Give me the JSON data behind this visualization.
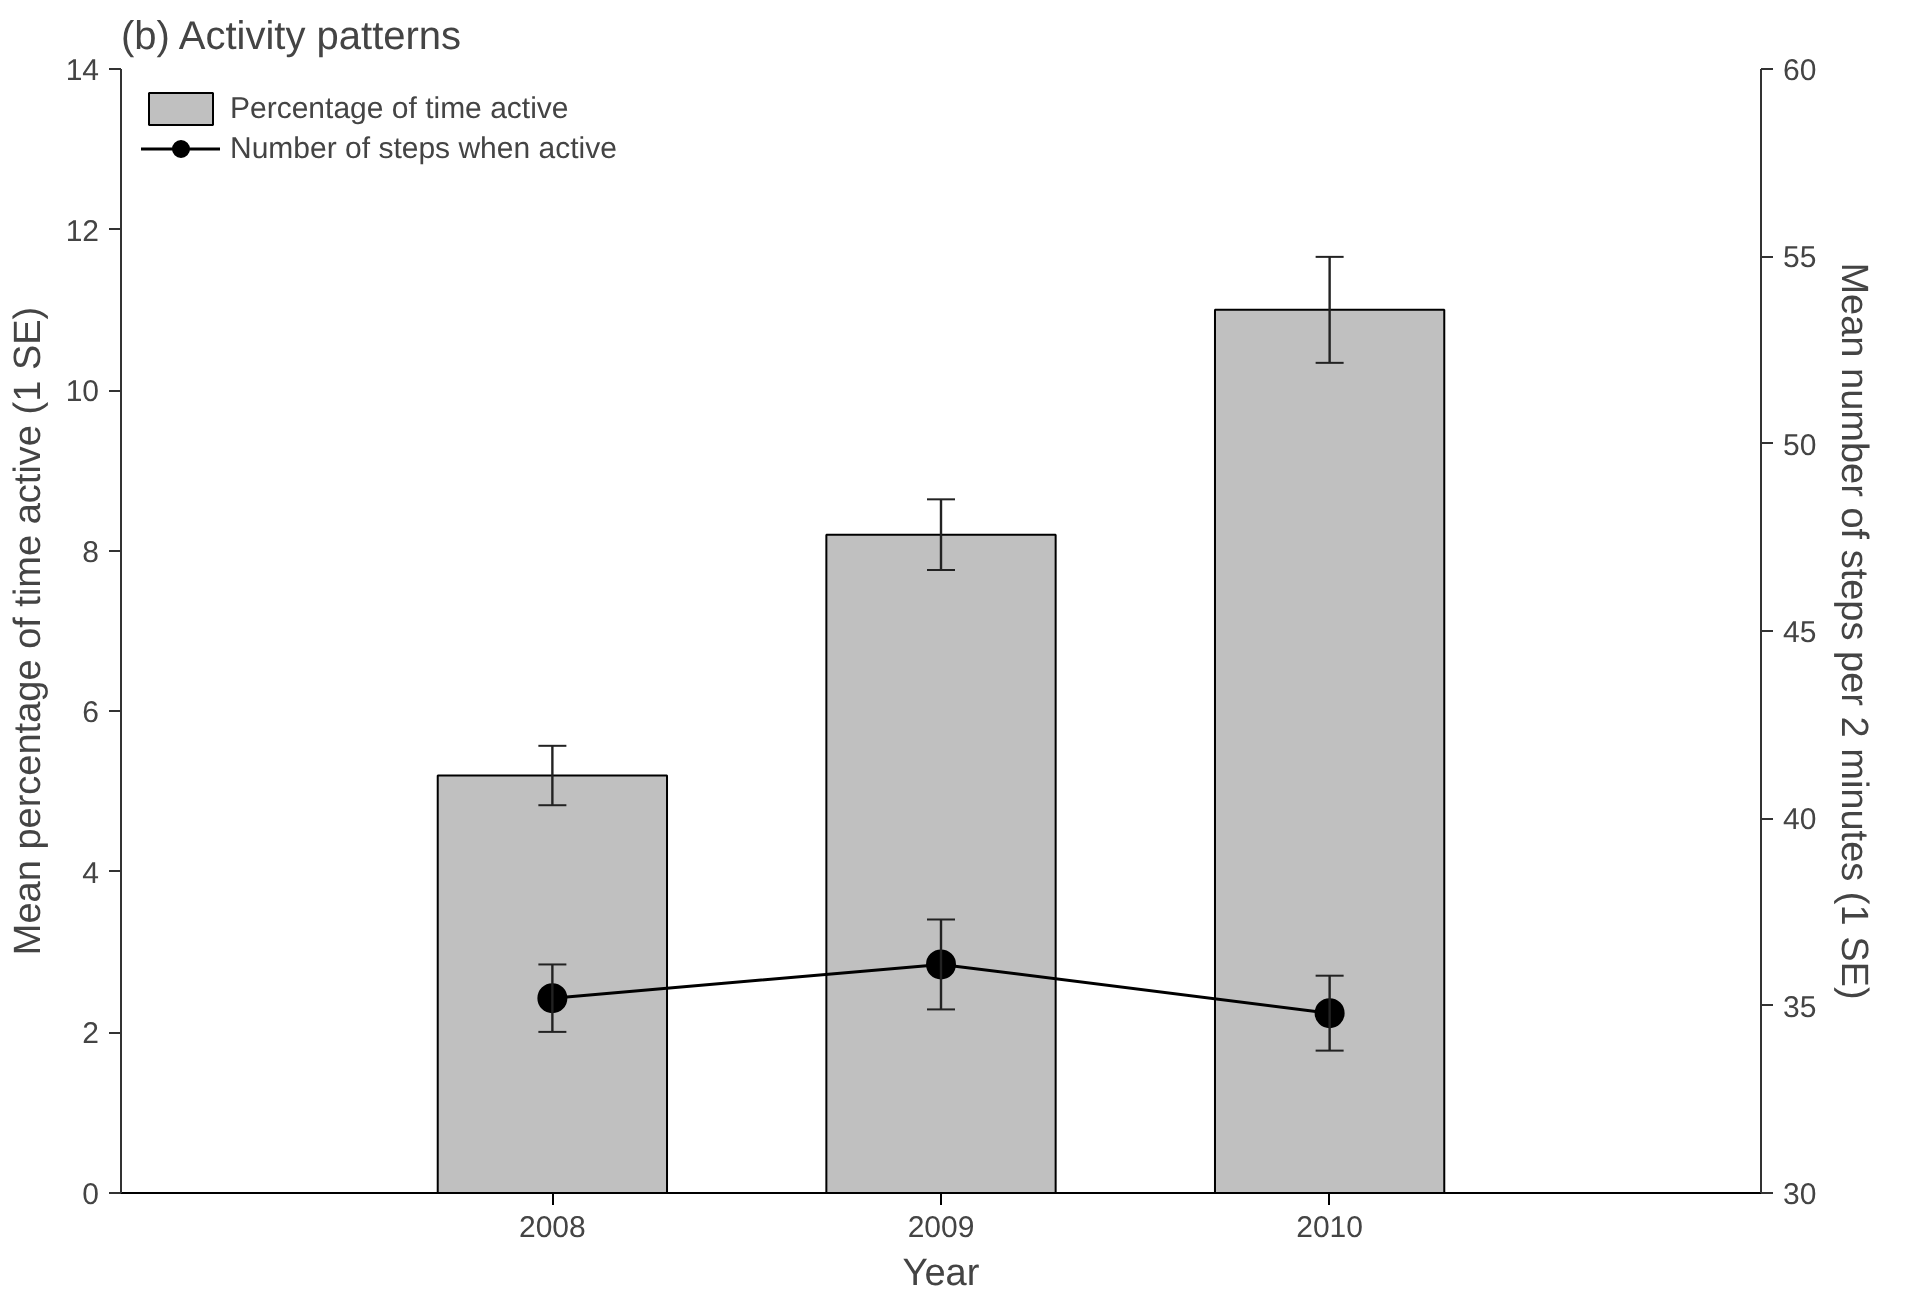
{
  "chart_data": {
    "type": "bar",
    "title": "(b) Activity patterns",
    "xlabel": "Year",
    "ylabel": "Mean percentage of time active (1 SE)",
    "y2label": "Mean number of steps per 2 minutes (1 SE)",
    "categories": [
      "2008",
      "2009",
      "2010"
    ],
    "series": [
      {
        "name": "Percentage of time active",
        "color": "#c0c0c0",
        "values": [
          5.2,
          8.2,
          11.0
        ],
        "errors": [
          0.37,
          0.44,
          0.66
        ]
      },
      {
        "name": "Number of steps when active",
        "type": "line",
        "axis": "y2",
        "color": "#000000",
        "marker": "circle",
        "values": [
          35.2,
          36.1,
          34.8
        ],
        "errors": [
          0.9,
          1.2,
          1.0
        ]
      }
    ],
    "ylim": [
      0,
      14
    ],
    "yticks": [
      0,
      2,
      4,
      6,
      8,
      10,
      12,
      14
    ],
    "y2lim": [
      30,
      60
    ],
    "y2ticks": [
      30,
      35,
      40,
      45,
      50,
      55,
      60
    ],
    "legend": "top left",
    "grid": false
  }
}
